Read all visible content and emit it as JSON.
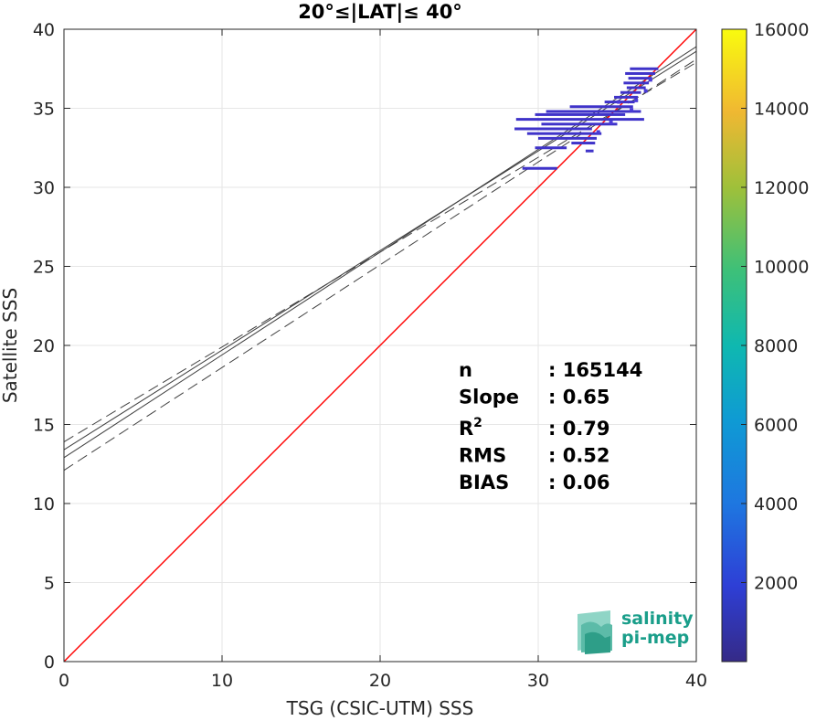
{
  "chart_data": {
    "type": "scatter",
    "title": "20°≤|LAT|≤ 40°",
    "xlabel": "TSG (CSIC-UTM) SSS",
    "ylabel": "Satellite SSS",
    "xlim": [
      0,
      40
    ],
    "ylim": [
      0,
      40
    ],
    "xticks": [
      0,
      10,
      20,
      30,
      40
    ],
    "yticks": [
      0,
      5,
      10,
      15,
      20,
      25,
      30,
      35,
      40
    ],
    "grid": true,
    "colorbar": {
      "range": [
        0,
        16000
      ],
      "ticks": [
        2000,
        4000,
        6000,
        8000,
        10000,
        12000,
        14000,
        16000
      ],
      "colormap": "parula"
    },
    "identity_line": {
      "from": [
        0,
        0
      ],
      "to": [
        40,
        40
      ],
      "color": "#ff0000"
    },
    "fit_line": {
      "slope": 0.65,
      "intercept": 12.9,
      "color": "#404040"
    },
    "fit_band_lines": [
      {
        "intercept": 13.9,
        "slope": 0.6,
        "style": "dashed"
      },
      {
        "intercept": 12.1,
        "slope": 0.65,
        "style": "dashed"
      },
      {
        "intercept": 13.4,
        "slope": 0.63,
        "style": "solid"
      }
    ],
    "density_segments": [
      {
        "y": 37.5,
        "x0": 35.8,
        "x1": 37.6
      },
      {
        "y": 37.2,
        "x0": 35.5,
        "x1": 37.4
      },
      {
        "y": 36.9,
        "x0": 35.7,
        "x1": 37.2
      },
      {
        "y": 36.6,
        "x0": 35.4,
        "x1": 37.0
      },
      {
        "y": 36.3,
        "x0": 35.6,
        "x1": 36.8
      },
      {
        "y": 36.0,
        "x0": 35.2,
        "x1": 36.5
      },
      {
        "y": 35.7,
        "x0": 34.8,
        "x1": 36.3
      },
      {
        "y": 35.4,
        "x0": 34.2,
        "x1": 36.1
      },
      {
        "y": 35.1,
        "x0": 32.0,
        "x1": 36.0
      },
      {
        "y": 34.8,
        "x0": 30.5,
        "x1": 36.5
      },
      {
        "y": 34.6,
        "x0": 29.8,
        "x1": 35.5
      },
      {
        "y": 34.3,
        "x0": 28.6,
        "x1": 36.7
      },
      {
        "y": 34.0,
        "x0": 30.2,
        "x1": 35.0
      },
      {
        "y": 33.7,
        "x0": 28.5,
        "x1": 33.4
      },
      {
        "y": 33.4,
        "x0": 29.3,
        "x1": 34.0
      },
      {
        "y": 33.1,
        "x0": 30.0,
        "x1": 33.7
      },
      {
        "y": 32.8,
        "x0": 32.1,
        "x1": 33.6
      },
      {
        "y": 32.5,
        "x0": 29.8,
        "x1": 31.8
      },
      {
        "y": 32.3,
        "x0": 33.0,
        "x1": 33.5
      },
      {
        "y": 31.2,
        "x0": 29.0,
        "x1": 31.2
      }
    ],
    "density_color": "#3f33c9",
    "stats": [
      {
        "label": "n",
        "value": ": 165144"
      },
      {
        "label": "Slope",
        "value": ": 0.65"
      },
      {
        "label": "R",
        "sup": "2",
        "value": ": 0.79"
      },
      {
        "label": "RMS",
        "value": ": 0.52"
      },
      {
        "label": "BIAS",
        "value": ": 0.06"
      }
    ]
  },
  "logo": {
    "line1": "salinity",
    "line2": "pi-mep"
  }
}
